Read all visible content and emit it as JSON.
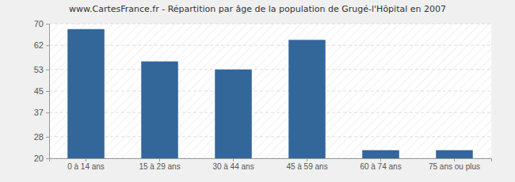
{
  "chart_data": {
    "type": "bar",
    "title": "www.CartesFrance.fr - Répartition par âge de la population de Grugé-l'Hôpital en 2007",
    "categories": [
      "0 à 14 ans",
      "15 à 29 ans",
      "30 à 44 ans",
      "45 à 59 ans",
      "60 à 74 ans",
      "75 ans ou plus"
    ],
    "values": [
      68,
      56,
      53,
      64,
      23,
      23
    ],
    "color": "#336699",
    "ylim": [
      20,
      70
    ],
    "yticks": [
      20,
      28,
      37,
      45,
      53,
      62,
      70
    ],
    "grid": true
  }
}
